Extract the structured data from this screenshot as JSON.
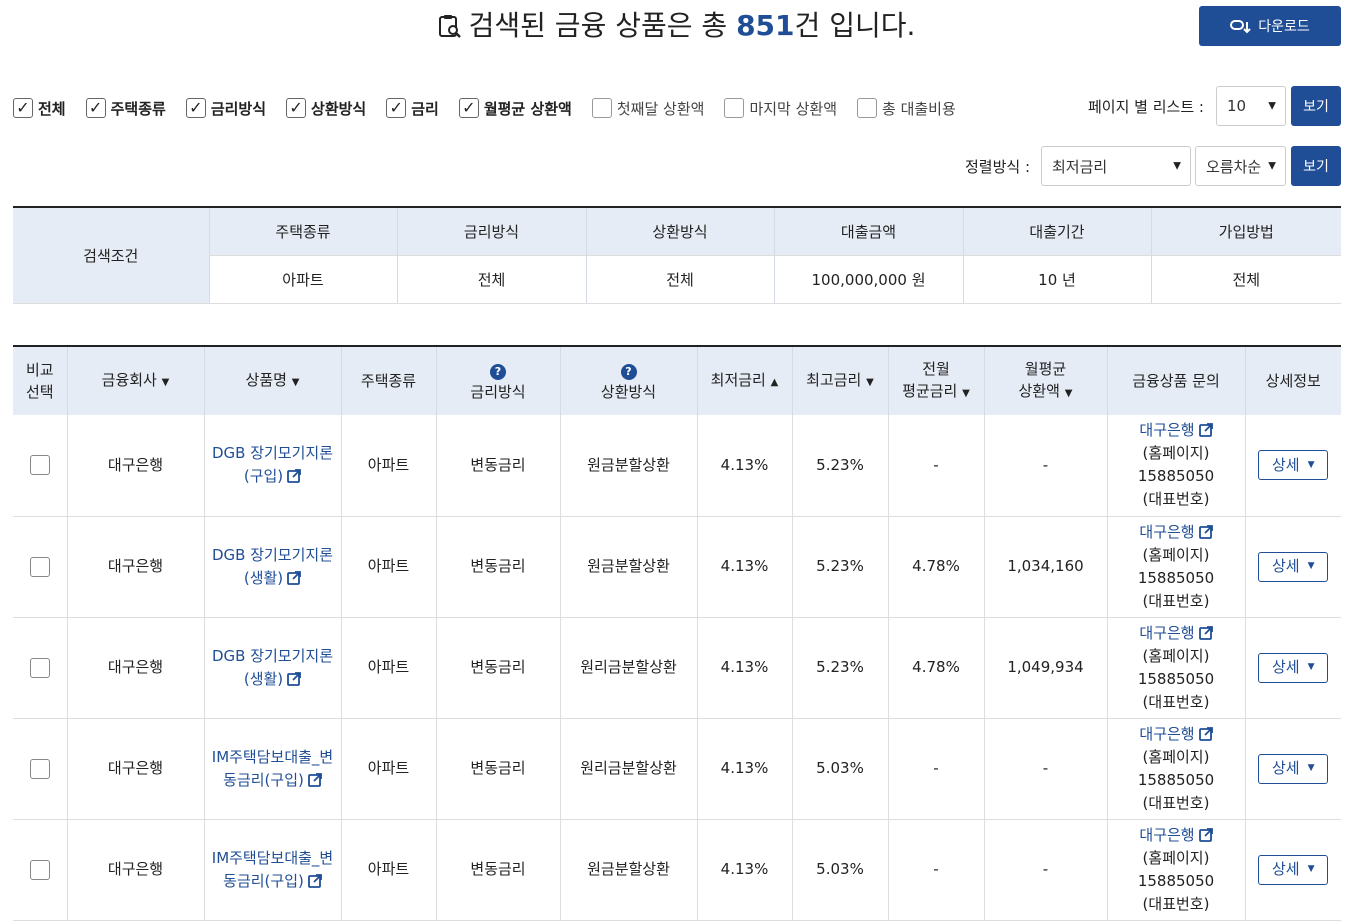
{
  "header": {
    "title_prefix": "검색된 금융 상품은 총 ",
    "count": "851",
    "title_suffix": "건 입니다.",
    "download_label": "다운로드"
  },
  "filters": [
    {
      "label": "전체",
      "checked": true
    },
    {
      "label": "주택종류",
      "checked": true
    },
    {
      "label": "금리방식",
      "checked": true
    },
    {
      "label": "상환방식",
      "checked": true
    },
    {
      "label": "금리",
      "checked": true
    },
    {
      "label": "월평균 상환액",
      "checked": true
    },
    {
      "label": "첫째달 상환액",
      "checked": false
    },
    {
      "label": "마지막 상환액",
      "checked": false
    },
    {
      "label": "총 대출비용",
      "checked": false
    }
  ],
  "per_page": {
    "label": "페이지 별 리스트 :",
    "value": "10",
    "button": "보기"
  },
  "sort": {
    "label": "정렬방식 :",
    "field": "최저금리",
    "order": "오름차순",
    "button": "보기"
  },
  "conditions": {
    "label": "검색조건",
    "headers": [
      "주택종류",
      "금리방식",
      "상환방식",
      "대출금액",
      "대출기간",
      "가입방법"
    ],
    "values": [
      "아파트",
      "전체",
      "전체",
      "100,000,000 원",
      "10 년",
      "전체"
    ]
  },
  "table": {
    "headers": {
      "compare": [
        "비교",
        "선택"
      ],
      "company": "금융회사",
      "product": "상품명",
      "house": "주택종류",
      "rate_type": "금리방식",
      "repay": "상환방식",
      "min_rate": "최저금리",
      "max_rate": "최고금리",
      "prev_avg": [
        "전월",
        "평균금리"
      ],
      "monthly": [
        "월평균",
        "상환액"
      ],
      "inquiry": "금융상품 문의",
      "detail": "상세정보"
    },
    "rows": [
      {
        "company": "대구은행",
        "product": [
          "DGB 장기모기지론",
          "(구입)"
        ],
        "house": "아파트",
        "rate_type": "변동금리",
        "repay": "원금분할상환",
        "min_rate": "4.13%",
        "max_rate": "5.23%",
        "prev_avg": "-",
        "monthly": "-",
        "bank": "대구은행",
        "home": "(홈페이지)",
        "phone": "15885050",
        "phone_lbl": "(대표번호)",
        "detail": "상세"
      },
      {
        "company": "대구은행",
        "product": [
          "DGB 장기모기지론",
          "(생활)"
        ],
        "house": "아파트",
        "rate_type": "변동금리",
        "repay": "원금분할상환",
        "min_rate": "4.13%",
        "max_rate": "5.23%",
        "prev_avg": "4.78%",
        "monthly": "1,034,160",
        "bank": "대구은행",
        "home": "(홈페이지)",
        "phone": "15885050",
        "phone_lbl": "(대표번호)",
        "detail": "상세"
      },
      {
        "company": "대구은행",
        "product": [
          "DGB 장기모기지론",
          "(생활)"
        ],
        "house": "아파트",
        "rate_type": "변동금리",
        "repay": "원리금분할상환",
        "min_rate": "4.13%",
        "max_rate": "5.23%",
        "prev_avg": "4.78%",
        "monthly": "1,049,934",
        "bank": "대구은행",
        "home": "(홈페이지)",
        "phone": "15885050",
        "phone_lbl": "(대표번호)",
        "detail": "상세"
      },
      {
        "company": "대구은행",
        "product": [
          "IM주택담보대출_변",
          "동금리(구입)"
        ],
        "house": "아파트",
        "rate_type": "변동금리",
        "repay": "원리금분할상환",
        "min_rate": "4.13%",
        "max_rate": "5.03%",
        "prev_avg": "-",
        "monthly": "-",
        "bank": "대구은행",
        "home": "(홈페이지)",
        "phone": "15885050",
        "phone_lbl": "(대표번호)",
        "detail": "상세"
      },
      {
        "company": "대구은행",
        "product": [
          "IM주택담보대출_변",
          "동금리(구입)"
        ],
        "house": "아파트",
        "rate_type": "변동금리",
        "repay": "원금분할상환",
        "min_rate": "4.13%",
        "max_rate": "5.03%",
        "prev_avg": "-",
        "monthly": "-",
        "bank": "대구은행",
        "home": "(홈페이지)",
        "phone": "15885050",
        "phone_lbl": "(대표번호)",
        "detail": "상세"
      }
    ]
  },
  "colors": {
    "accent": "#1f4e96",
    "header_bg": "#e6ecf5"
  }
}
